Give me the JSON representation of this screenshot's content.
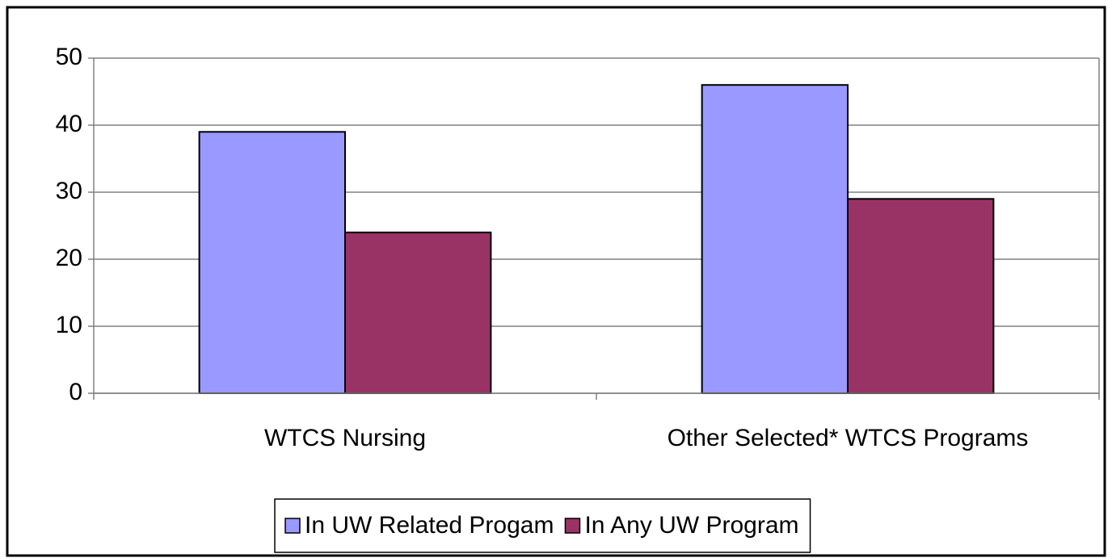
{
  "chart_data": {
    "type": "bar",
    "categories": [
      "WTCS Nursing",
      "Other Selected* WTCS Programs"
    ],
    "series": [
      {
        "name": "In UW Related Progam",
        "color": "#9999ff",
        "values": [
          39,
          46
        ]
      },
      {
        "name": "In Any UW Program",
        "color": "#993366",
        "values": [
          24,
          29
        ]
      }
    ],
    "ylim": [
      0,
      50
    ],
    "yticks": [
      0,
      10,
      20,
      30,
      40,
      50
    ],
    "grid": true,
    "legend": "bottom"
  }
}
